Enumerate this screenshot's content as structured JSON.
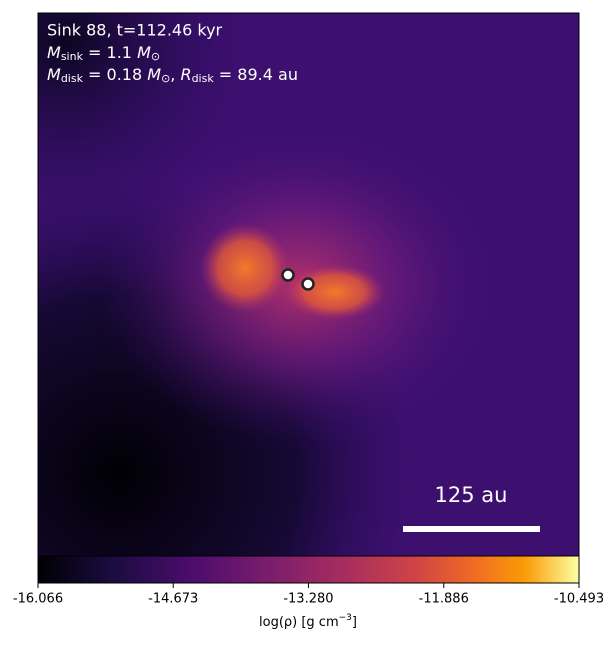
{
  "chart_data": {
    "type": "image",
    "annotation": {
      "line1": "Sink 88, t=112.46 kyr",
      "line2": [
        "M",
        "sink",
        " = 1.1 ",
        "M",
        "⊙"
      ],
      "line3": [
        "M",
        "disk",
        " = 0.18 ",
        "M",
        "⊙",
        ", ",
        "R",
        "disk",
        " = 89.4 au"
      ]
    },
    "scalebar_label": "125 au",
    "colorbar": {
      "label": [
        "log(ρ) [g cm",
        "−3",
        "]"
      ],
      "lim": [
        -16.066,
        -10.493
      ],
      "ticks": [
        -16.066,
        -14.673,
        {
          "value": -13.28,
          "label": "-13.280"
        },
        -11.886,
        -10.493
      ]
    }
  }
}
